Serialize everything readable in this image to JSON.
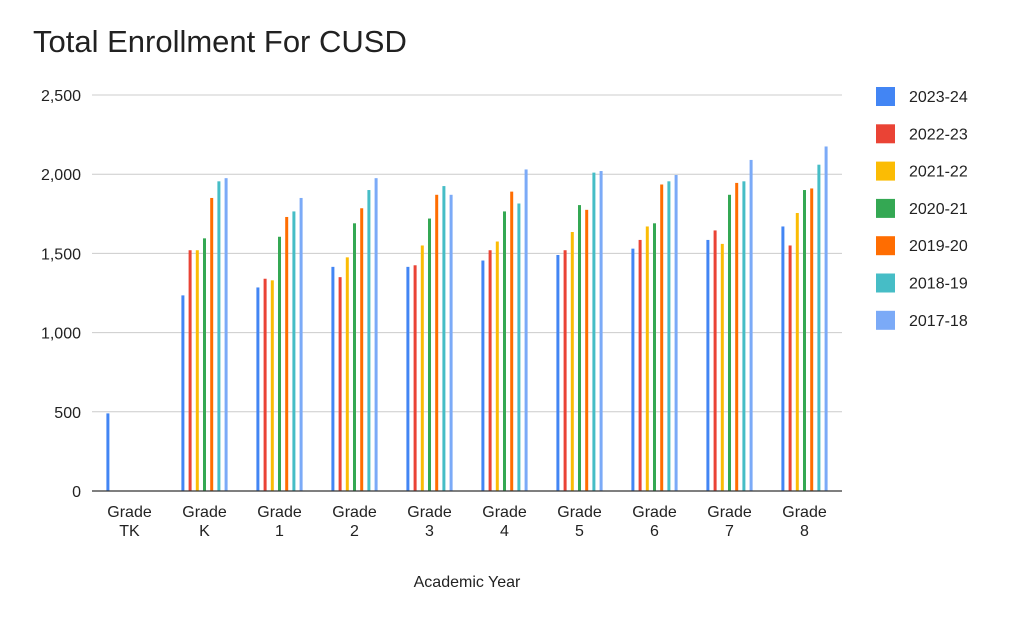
{
  "chart_data": {
    "type": "bar",
    "title": "Total Enrollment For CUSD",
    "xlabel": "Academic Year",
    "ylabel": "",
    "ylim": [
      0,
      2500
    ],
    "yticks": [
      0,
      500,
      1000,
      1500,
      2000,
      2500
    ],
    "ytick_labels": [
      "0",
      "500",
      "1,000",
      "1,500",
      "2,000",
      "2,500"
    ],
    "grid": true,
    "legend_position": "right",
    "categories": [
      [
        "Grade",
        "TK"
      ],
      [
        "Grade",
        "K"
      ],
      [
        "Grade",
        "1"
      ],
      [
        "Grade",
        "2"
      ],
      [
        "Grade",
        "3"
      ],
      [
        "Grade",
        "4"
      ],
      [
        "Grade",
        "5"
      ],
      [
        "Grade",
        "6"
      ],
      [
        "Grade",
        "7"
      ],
      [
        "Grade",
        "8"
      ]
    ],
    "series": [
      {
        "name": "2023-24",
        "color": "#4285f4",
        "values": [
          490,
          1235,
          1285,
          1415,
          1415,
          1455,
          1490,
          1530,
          1585,
          1670
        ]
      },
      {
        "name": "2022-23",
        "color": "#ea4335",
        "values": [
          null,
          1520,
          1340,
          1350,
          1425,
          1520,
          1520,
          1585,
          1645,
          1550
        ]
      },
      {
        "name": "2021-22",
        "color": "#fbbc04",
        "values": [
          null,
          1520,
          1330,
          1475,
          1550,
          1575,
          1635,
          1670,
          1560,
          1755
        ]
      },
      {
        "name": "2020-21",
        "color": "#34a853",
        "values": [
          null,
          1595,
          1605,
          1690,
          1720,
          1765,
          1805,
          1690,
          1870,
          1900
        ]
      },
      {
        "name": "2019-20",
        "color": "#ff6d01",
        "values": [
          null,
          1850,
          1730,
          1785,
          1870,
          1890,
          1775,
          1935,
          1945,
          1910
        ]
      },
      {
        "name": "2018-19",
        "color": "#46bdc6",
        "values": [
          null,
          1955,
          1765,
          1900,
          1925,
          1815,
          2010,
          1955,
          1955,
          2060
        ]
      },
      {
        "name": "2017-18",
        "color": "#7baaf7",
        "values": [
          null,
          1975,
          1850,
          1975,
          1870,
          2030,
          2020,
          1995,
          2090,
          2175
        ]
      }
    ]
  }
}
